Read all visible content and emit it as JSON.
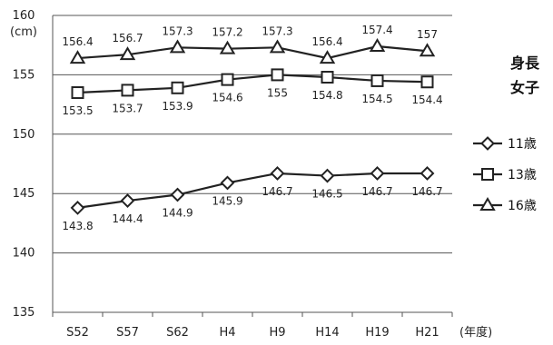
{
  "chart_data": {
    "type": "line",
    "ylabel": "(cm)",
    "xlabel": "(年度)",
    "categories": [
      "S52",
      "S57",
      "S62",
      "H4",
      "H9",
      "H14",
      "H19",
      "H21"
    ],
    "ylim": [
      135,
      160
    ],
    "yticks": [
      135,
      140,
      145,
      150,
      155,
      160
    ],
    "grid": true,
    "legend_title": [
      "身長",
      "女子"
    ],
    "legend_position": "right",
    "series": [
      {
        "name": "11歳",
        "marker": "diamond",
        "values": [
          143.8,
          144.4,
          144.9,
          145.9,
          146.7,
          146.5,
          146.7,
          146.7
        ]
      },
      {
        "name": "13歳",
        "marker": "square",
        "values": [
          153.5,
          153.7,
          153.9,
          154.6,
          155,
          154.8,
          154.5,
          154.4
        ]
      },
      {
        "name": "16歳",
        "marker": "triangle",
        "values": [
          156.4,
          156.7,
          157.3,
          157.2,
          157.3,
          156.4,
          157.4,
          157
        ]
      }
    ]
  }
}
